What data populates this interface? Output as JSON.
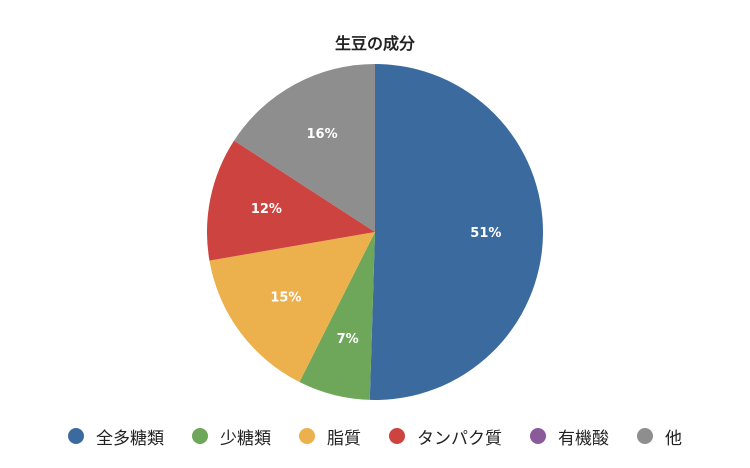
{
  "chart_data": {
    "type": "pie",
    "title": "生豆の成分",
    "slices": [
      {
        "name": "全多糖類",
        "value": 51,
        "label": "51%",
        "color": "#3b6b9e"
      },
      {
        "name": "少糖類",
        "value": 7,
        "label": "7%",
        "color": "#6ea65a"
      },
      {
        "name": "脂質",
        "value": 15,
        "label": "15%",
        "color": "#ecb14d"
      },
      {
        "name": "タンパク質",
        "value": 12,
        "label": "12%",
        "color": "#cc4340"
      },
      {
        "name": "有機酸",
        "value": 0,
        "label": "",
        "color": "#8a5a9b"
      },
      {
        "name": "他",
        "value": 16,
        "label": "16%",
        "color": "#8e8e8e"
      }
    ],
    "start_angle": "top",
    "direction": "clockwise",
    "legend_position": "bottom"
  }
}
